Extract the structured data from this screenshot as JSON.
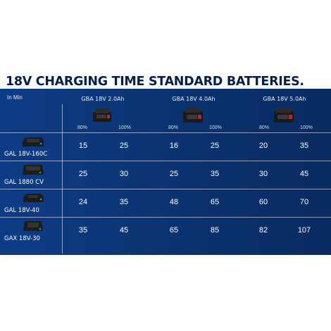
{
  "title": "18V CHARGING TIME STANDARD BATTERIES.",
  "table": {
    "corner_label": "In Min",
    "batteries": [
      {
        "name": "GBA 18V 2.0Ah",
        "pct_low": "80%",
        "pct_high": "100%",
        "icon": "battery-2ah-icon"
      },
      {
        "name": "GBA 18V 4.0Ah",
        "pct_low": "80%",
        "pct_high": "100%",
        "icon": "battery-4ah-icon"
      },
      {
        "name": "GBA 18V 5.0Ah",
        "pct_low": "80%",
        "pct_high": "100%",
        "icon": "battery-5ah-icon"
      }
    ],
    "rows": [
      {
        "charger": "GAL 18V-160C",
        "icon": "charger-icon",
        "values": [
          "15",
          "25",
          "16",
          "25",
          "20",
          "35"
        ]
      },
      {
        "charger": "GAL 1880 CV",
        "icon": "charger-icon",
        "values": [
          "25",
          "30",
          "25",
          "35",
          "30",
          "45"
        ]
      },
      {
        "charger": "GAL 18V-40",
        "icon": "charger-icon",
        "values": [
          "24",
          "35",
          "48",
          "65",
          "60",
          "70"
        ]
      },
      {
        "charger": "GAX 18V-30",
        "icon": "charger-icon",
        "values": [
          "35",
          "45",
          "65",
          "85",
          "82",
          "107"
        ]
      }
    ]
  }
}
